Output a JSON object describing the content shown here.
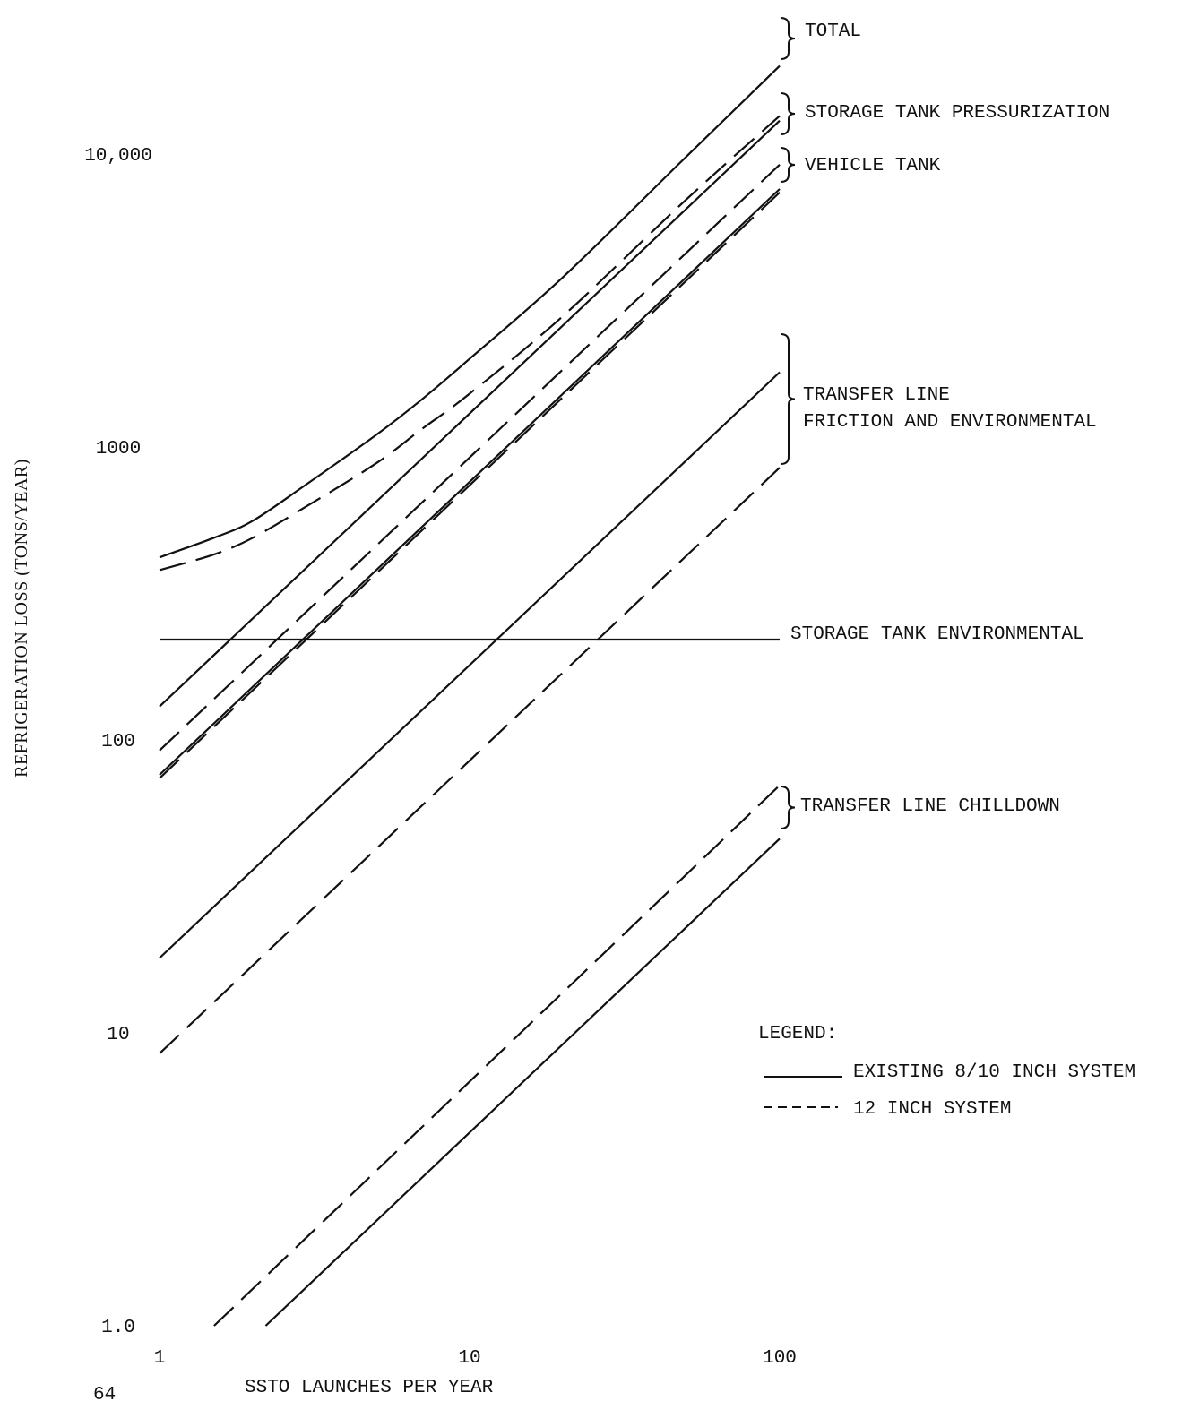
{
  "chart_data": {
    "type": "line",
    "xscale": "log",
    "yscale": "log",
    "xlim": [
      1,
      100
    ],
    "ylim": [
      1,
      28000
    ],
    "xlabel": "SSTO LAUNCHES PER YEAR",
    "ylabel": "REFRIGERATION LOSS (TONS/YEAR)",
    "xticks": [
      {
        "value": 1,
        "label": "1"
      },
      {
        "value": 10,
        "label": "10"
      },
      {
        "value": 100,
        "label": "100"
      }
    ],
    "yticks": [
      {
        "value": 1,
        "label": "1.0"
      },
      {
        "value": 10,
        "label": "10"
      },
      {
        "value": 100,
        "label": "100"
      },
      {
        "value": 1000,
        "label": "1000"
      },
      {
        "value": 10000,
        "label": "10,000"
      }
    ],
    "grid": false,
    "legend": {
      "title": "LEGEND:",
      "position": "right",
      "entries": [
        {
          "style": "solid",
          "label": "EXISTING 8/10 INCH SYSTEM"
        },
        {
          "style": "dashed",
          "label": "12 INCH SYSTEM"
        }
      ]
    },
    "groups": [
      {
        "label": [
          "TOTAL"
        ],
        "curves": [
          "total-existing",
          "total-12in"
        ]
      },
      {
        "label": [
          "STORAGE TANK PRESSURIZATION"
        ],
        "curves": [
          "pressurization-existing",
          "pressurization-12in"
        ]
      },
      {
        "label": [
          "VEHICLE TANK"
        ],
        "curves": [
          "vehicle-existing",
          "vehicle-12in"
        ]
      },
      {
        "label": [
          "TRANSFER LINE",
          "FRICTION AND ENVIRONMENTAL"
        ],
        "curves": [
          "friction-existing",
          "friction-12in"
        ]
      },
      {
        "label": [
          "STORAGE TANK ENVIRONMENTAL"
        ],
        "curves": [
          "storage-env"
        ]
      },
      {
        "label": [
          "TRANSFER LINE CHILLDOWN"
        ],
        "curves": [
          "chilldown-existing",
          "chilldown-12in"
        ]
      }
    ],
    "series": [
      {
        "id": "total-existing",
        "style": "solid",
        "x": [
          1,
          1.5,
          2,
          3,
          5,
          7,
          10,
          20,
          50,
          100
        ],
        "y": [
          420,
          490,
          560,
          750,
          1100,
          1450,
          2000,
          3800,
          9800,
          20000
        ]
      },
      {
        "id": "total-12in",
        "style": "dashed",
        "x": [
          1,
          1.5,
          2,
          3,
          5,
          7,
          10,
          20,
          50,
          100
        ],
        "y": [
          380,
          430,
          490,
          630,
          880,
          1150,
          1520,
          2800,
          7000,
          13500
        ]
      },
      {
        "id": "pressurization-existing",
        "style": "solid",
        "x": [
          1,
          100
        ],
        "y": [
          130,
          13000
        ]
      },
      {
        "id": "pressurization-12in",
        "style": "dashed",
        "x": [
          1,
          100
        ],
        "y": [
          92,
          9200
        ]
      },
      {
        "id": "vehicle-existing",
        "style": "solid",
        "x": [
          1,
          100
        ],
        "y": [
          76,
          7600
        ]
      },
      {
        "id": "vehicle-12in",
        "style": "dashed",
        "x": [
          1,
          100
        ],
        "y": [
          74,
          7400
        ]
      },
      {
        "id": "storage-env",
        "style": "solid",
        "x": [
          1,
          100
        ],
        "y": [
          220,
          220
        ]
      },
      {
        "id": "friction-existing",
        "style": "solid",
        "x": [
          1,
          100
        ],
        "y": [
          18,
          1800
        ]
      },
      {
        "id": "friction-12in",
        "style": "dashed",
        "x": [
          1,
          100
        ],
        "y": [
          8.5,
          850
        ]
      },
      {
        "id": "chilldown-12in",
        "style": "dashed",
        "x": [
          1.5,
          100
        ],
        "y": [
          1.0,
          70
        ]
      },
      {
        "id": "chilldown-existing",
        "style": "solid",
        "x": [
          2.2,
          100
        ],
        "y": [
          1.0,
          46
        ]
      }
    ]
  },
  "page_number": "64"
}
